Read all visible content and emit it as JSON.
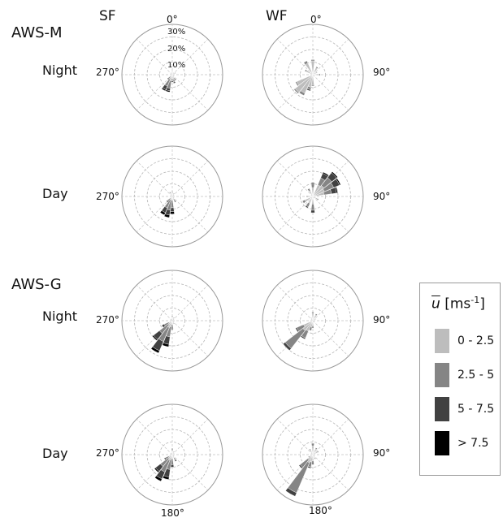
{
  "columns": [
    "SF",
    "WF"
  ],
  "stations": [
    "AWS-M",
    "AWS-G"
  ],
  "periods": [
    "Night",
    "Day"
  ],
  "direction_labels": {
    "north": "0°",
    "east": "90°",
    "south": "180°",
    "west": "270°"
  },
  "ring_labels": [
    "10%",
    "20%",
    "30%"
  ],
  "legend": {
    "symbol": "u",
    "unit": "[ms",
    "exponent": "-1",
    "close": "]",
    "classes": [
      {
        "label": "0 - 2.5",
        "color": "#bdbdbd"
      },
      {
        "label": "2.5 - 5",
        "color": "#858585"
      },
      {
        "label": "5 - 7.5",
        "color": "#414141"
      },
      {
        "label": "> 7.5",
        "color": "#000000"
      }
    ]
  },
  "chart_data": {
    "type": "wind-rose",
    "max_radius_percent": 40,
    "ring_percent": [
      10,
      20,
      30,
      40
    ],
    "speed_classes": [
      "0 - 2.5",
      "2.5 - 5",
      "5 - 7.5",
      "> 7.5"
    ],
    "panels": [
      {
        "station": "AWS-M",
        "period": "Night",
        "column": "SF",
        "bins": [
          {
            "dir": 150,
            "v": [
              3,
              1,
              1,
              0
            ]
          },
          {
            "dir": 165,
            "v": [
              4,
              2,
              1,
              0
            ]
          },
          {
            "dir": 180,
            "v": [
              3,
              2,
              1,
              0
            ]
          },
          {
            "dir": 195,
            "v": [
              5,
              6,
              2,
              1
            ]
          },
          {
            "dir": 210,
            "v": [
              4,
              6,
              3,
              1
            ]
          },
          {
            "dir": 225,
            "v": [
              2,
              2,
              1,
              0
            ]
          },
          {
            "dir": 30,
            "v": [
              2,
              0,
              0,
              0
            ]
          },
          {
            "dir": 60,
            "v": [
              2,
              1,
              0,
              0
            ]
          },
          {
            "dir": 330,
            "v": [
              2,
              0,
              0,
              0
            ]
          },
          {
            "dir": 0,
            "v": [
              3,
              0,
              0,
              0
            ]
          }
        ]
      },
      {
        "station": "AWS-M",
        "period": "Night",
        "column": "WF",
        "bins": [
          {
            "dir": 0,
            "v": [
              11,
              1,
              0,
              0
            ]
          },
          {
            "dir": 30,
            "v": [
              6,
              1,
              0,
              0
            ]
          },
          {
            "dir": 300,
            "v": [
              6,
              1,
              0,
              0
            ]
          },
          {
            "dir": 330,
            "v": [
              10,
              2,
              0,
              0
            ]
          },
          {
            "dir": 195,
            "v": [
              10,
              2,
              1,
              0
            ]
          },
          {
            "dir": 210,
            "v": [
              16,
              2,
              0,
              0
            ]
          },
          {
            "dir": 225,
            "v": [
              18,
              1,
              0,
              0
            ]
          },
          {
            "dir": 240,
            "v": [
              14,
              1,
              0,
              0
            ]
          },
          {
            "dir": 180,
            "v": [
              8,
              1,
              0,
              0
            ]
          },
          {
            "dir": 90,
            "v": [
              5,
              1,
              0,
              0
            ]
          },
          {
            "dir": 60,
            "v": [
              4,
              0,
              0,
              0
            ]
          }
        ]
      },
      {
        "station": "AWS-M",
        "period": "Day",
        "column": "SF",
        "bins": [
          {
            "dir": 0,
            "v": [
              3,
              1,
              0,
              0
            ]
          },
          {
            "dir": 30,
            "v": [
              2,
              1,
              0,
              0
            ]
          },
          {
            "dir": 150,
            "v": [
              2,
              2,
              1,
              0
            ]
          },
          {
            "dir": 180,
            "v": [
              3,
              6,
              3,
              2
            ]
          },
          {
            "dir": 195,
            "v": [
              3,
              8,
              4,
              2
            ]
          },
          {
            "dir": 210,
            "v": [
              3,
              7,
              4,
              2
            ]
          },
          {
            "dir": 225,
            "v": [
              2,
              3,
              1,
              0
            ]
          },
          {
            "dir": 330,
            "v": [
              3,
              1,
              0,
              0
            ]
          }
        ]
      },
      {
        "station": "AWS-M",
        "period": "Day",
        "column": "WF",
        "bins": [
          {
            "dir": 30,
            "v": [
              10,
              6,
              4,
              1
            ]
          },
          {
            "dir": 45,
            "v": [
              11,
              8,
              5,
              1
            ]
          },
          {
            "dir": 60,
            "v": [
              10,
              8,
              5,
              1
            ]
          },
          {
            "dir": 75,
            "v": [
              9,
              6,
              4,
              1
            ]
          },
          {
            "dir": 0,
            "v": [
              7,
              3,
              1,
              0
            ]
          },
          {
            "dir": 330,
            "v": [
              5,
              2,
              0,
              0
            ]
          },
          {
            "dir": 180,
            "v": [
              6,
              5,
              2,
              0
            ]
          },
          {
            "dir": 210,
            "v": [
              6,
              3,
              1,
              0
            ]
          },
          {
            "dir": 240,
            "v": [
              7,
              2,
              0,
              0
            ]
          },
          {
            "dir": 270,
            "v": [
              4,
              1,
              0,
              0
            ]
          },
          {
            "dir": 120,
            "v": [
              4,
              1,
              0,
              0
            ]
          }
        ]
      },
      {
        "station": "AWS-G",
        "period": "Night",
        "column": "SF",
        "bins": [
          {
            "dir": 195,
            "v": [
              5,
              8,
              6,
              2
            ]
          },
          {
            "dir": 210,
            "v": [
              6,
              12,
              8,
              2
            ]
          },
          {
            "dir": 225,
            "v": [
              4,
              9,
              6,
              1
            ]
          },
          {
            "dir": 240,
            "v": [
              3,
              4,
              2,
              0
            ]
          },
          {
            "dir": 180,
            "v": [
              3,
              3,
              1,
              0
            ]
          },
          {
            "dir": 150,
            "v": [
              2,
              1,
              0,
              0
            ]
          },
          {
            "dir": 0,
            "v": [
              3,
              1,
              0,
              0
            ]
          },
          {
            "dir": 30,
            "v": [
              2,
              1,
              0,
              0
            ]
          }
        ]
      },
      {
        "station": "AWS-G",
        "period": "Night",
        "column": "WF",
        "bins": [
          {
            "dir": 210,
            "v": [
              9,
              6,
              1,
              0
            ]
          },
          {
            "dir": 225,
            "v": [
              10,
              18,
              2,
              0
            ]
          },
          {
            "dir": 240,
            "v": [
              8,
              6,
              1,
              0
            ]
          },
          {
            "dir": 195,
            "v": [
              5,
              3,
              0,
              0
            ]
          },
          {
            "dir": 180,
            "v": [
              4,
              2,
              0,
              0
            ]
          },
          {
            "dir": 0,
            "v": [
              6,
              1,
              0,
              0
            ]
          },
          {
            "dir": 30,
            "v": [
              5,
              1,
              0,
              0
            ]
          },
          {
            "dir": 60,
            "v": [
              3,
              0,
              0,
              0
            ]
          },
          {
            "dir": 330,
            "v": [
              3,
              0,
              0,
              0
            ]
          }
        ]
      },
      {
        "station": "AWS-G",
        "period": "Day",
        "column": "SF",
        "bins": [
          {
            "dir": 195,
            "v": [
              4,
              8,
              6,
              2
            ]
          },
          {
            "dir": 210,
            "v": [
              5,
              10,
              6,
              2
            ]
          },
          {
            "dir": 225,
            "v": [
              4,
              8,
              5,
              1
            ]
          },
          {
            "dir": 180,
            "v": [
              3,
              5,
              2,
              0
            ]
          },
          {
            "dir": 150,
            "v": [
              3,
              2,
              1,
              0
            ]
          },
          {
            "dir": 240,
            "v": [
              3,
              3,
              1,
              0
            ]
          },
          {
            "dir": 0,
            "v": [
              3,
              2,
              0,
              0
            ]
          },
          {
            "dir": 30,
            "v": [
              2,
              1,
              0,
              0
            ]
          },
          {
            "dir": 60,
            "v": [
              2,
              0,
              0,
              0
            ]
          }
        ]
      },
      {
        "station": "AWS-G",
        "period": "Day",
        "column": "WF",
        "bins": [
          {
            "dir": 210,
            "v": [
              7,
              26,
              3,
              0
            ]
          },
          {
            "dir": 225,
            "v": [
              5,
              8,
              1,
              0
            ]
          },
          {
            "dir": 195,
            "v": [
              6,
              4,
              1,
              0
            ]
          },
          {
            "dir": 180,
            "v": [
              5,
              3,
              0,
              0
            ]
          },
          {
            "dir": 0,
            "v": [
              7,
              2,
              0,
              0
            ]
          },
          {
            "dir": 30,
            "v": [
              5,
              1,
              0,
              0
            ]
          },
          {
            "dir": 60,
            "v": [
              4,
              1,
              0,
              0
            ]
          },
          {
            "dir": 330,
            "v": [
              4,
              1,
              0,
              0
            ]
          },
          {
            "dir": 150,
            "v": [
              3,
              1,
              0,
              0
            ]
          },
          {
            "dir": 240,
            "v": [
              3,
              1,
              0,
              0
            ]
          }
        ]
      }
    ]
  }
}
